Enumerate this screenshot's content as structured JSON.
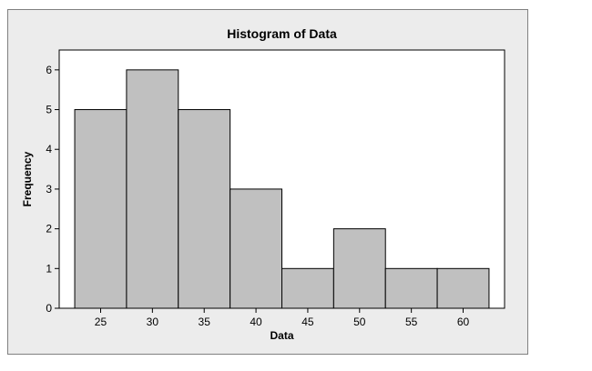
{
  "chart_data": {
    "type": "bar",
    "title": "Histogram of Data",
    "xlabel": "Data",
    "ylabel": "Frequency",
    "x_ticks": [
      "25",
      "30",
      "35",
      "40",
      "45",
      "50",
      "55",
      "60"
    ],
    "y_ticks": [
      "0",
      "1",
      "2",
      "3",
      "4",
      "5",
      "6"
    ],
    "bins": [
      {
        "start": 22.5,
        "end": 27.5
      },
      {
        "start": 27.5,
        "end": 32.5
      },
      {
        "start": 32.5,
        "end": 37.5
      },
      {
        "start": 37.5,
        "end": 42.5
      },
      {
        "start": 42.5,
        "end": 47.5
      },
      {
        "start": 47.5,
        "end": 52.5
      },
      {
        "start": 52.5,
        "end": 57.5
      },
      {
        "start": 57.5,
        "end": 62.5
      }
    ],
    "categories": [
      "25",
      "30",
      "35",
      "40",
      "45",
      "50",
      "55",
      "60"
    ],
    "values": [
      5,
      6,
      5,
      3,
      1,
      2,
      1,
      1
    ],
    "xlim": [
      21,
      64
    ],
    "ylim": [
      0,
      6.5
    ],
    "grid": false,
    "colors": {
      "bar_fill": "#c0c0c0",
      "bar_edge": "#000000",
      "plot_background": "#ffffff",
      "frame_background": "#ececec"
    }
  }
}
